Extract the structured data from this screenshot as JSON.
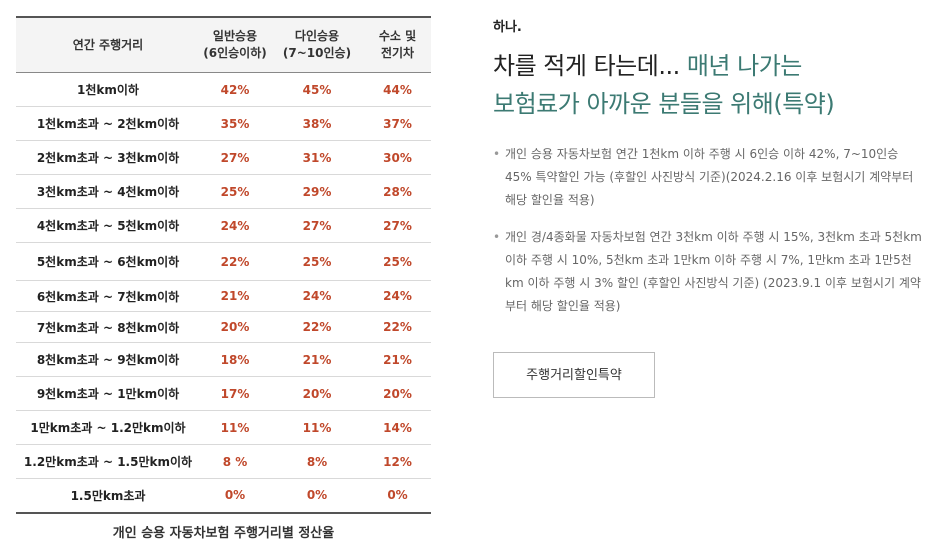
{
  "table": {
    "headers": [
      "연간 주행거리",
      "일반승용\n(6인승이하)",
      "다인승용\n(7~10인승)",
      "수소 및\n전기차"
    ],
    "rows": [
      {
        "distance": "1천km이하",
        "general": "42%",
        "multi": "45%",
        "eco": "44%"
      },
      {
        "distance": "1천km초과 ~ 2천km이하",
        "general": "35%",
        "multi": "38%",
        "eco": "37%"
      },
      {
        "distance": "2천km초과 ~ 3천km이하",
        "general": "27%",
        "multi": "31%",
        "eco": "30%"
      },
      {
        "distance": "3천km초과 ~ 4천km이하",
        "general": "25%",
        "multi": "29%",
        "eco": "28%"
      },
      {
        "distance": "4천km초과 ~ 5천km이하",
        "general": "24%",
        "multi": "27%",
        "eco": "27%"
      },
      {
        "distance": "5천km초과 ~ 6천km이하",
        "general": "22%",
        "multi": "25%",
        "eco": "25%"
      },
      {
        "distance": "6천km초과 ~ 7천km이하",
        "general": "21%",
        "multi": "24%",
        "eco": "24%"
      },
      {
        "distance": "7천km초과 ~ 8천km이하",
        "general": "20%",
        "multi": "22%",
        "eco": "22%"
      },
      {
        "distance": "8천km초과 ~ 9천km이하",
        "general": "18%",
        "multi": "21%",
        "eco": "21%"
      },
      {
        "distance": "9천km초과 ~ 1만km이하",
        "general": "17%",
        "multi": "20%",
        "eco": "20%"
      },
      {
        "distance": "1만km초과 ~ 1.2만km이하",
        "general": "11%",
        "multi": "11%",
        "eco": "14%"
      },
      {
        "distance": "1.2만km초과 ~ 1.5만km이하",
        "general": "8 %",
        "multi": "8%",
        "eco": "12%"
      },
      {
        "distance": "1.5만km초과",
        "general": "0%",
        "multi": "0%",
        "eco": "0%"
      }
    ],
    "caption": "개인 승용 자동차보험 주행거리별 정산율"
  },
  "info": {
    "eyebrow": "하나.",
    "headline_part1": "차를 적게 타는데... ",
    "headline_part2": "매년 나가는",
    "headline_part3": "보험료가 아까운 분들을 위해(특약)",
    "bullets": [
      "개인 승용 자동차보험 연간 1천km 이하 주행 시 6인승 이하 42%, 7~10인승 45% 특약할인 가능 (후할인 사진방식 기준)(2024.2.16 이후 보험시기 계약부터 해당 할인율 적용)",
      "개인 경/4종화물 자동차보험 연간 3천km 이하 주행 시 15%, 3천km 초과 5천km 이하 주행 시 10%, 5천km 초과 1만km 이하 주행 시 7%, 1만km 초과 1만5천km 이하 주행 시 3% 할인 (후할인 사진방식 기준) (2023.9.1 이후 보험시기 계약부터 해당 할인율 적용)"
    ],
    "bullet_symbol": "•",
    "cta_label": "주행거리할인특약"
  },
  "colors": {
    "accent_teal": "#3c7a73",
    "rate_red": "#c0482b"
  }
}
